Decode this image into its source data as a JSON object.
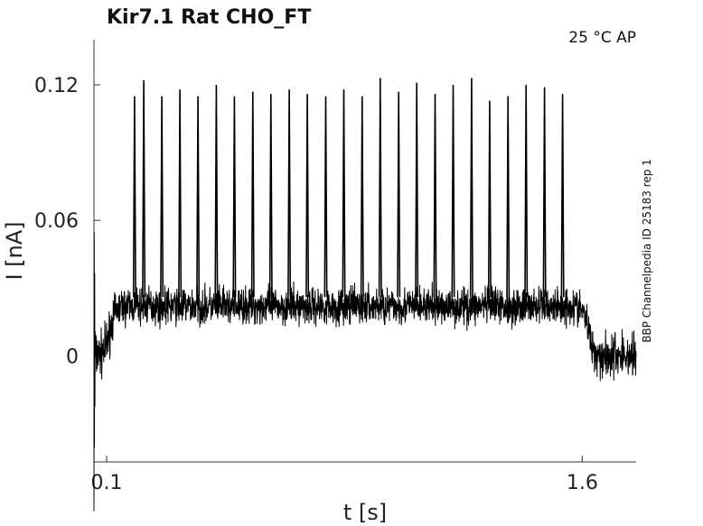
{
  "chart_data": {
    "type": "line",
    "title": "Kir7.1  Rat  CHO_FT",
    "condition": "25 °C  AP",
    "side_label": "BBP Channelpedia ID 25183 rep 1",
    "xlabel": "t [s]",
    "ylabel": "I [nA]",
    "xlim": [
      0.06,
      1.77
    ],
    "ylim": [
      -0.047,
      0.14
    ],
    "xticks": [
      {
        "value": 0.1,
        "label": "0.1"
      },
      {
        "value": 1.6,
        "label": "1.6"
      }
    ],
    "yticks": [
      {
        "value": 0,
        "label": "0"
      },
      {
        "value": 0.06,
        "label": "0.06"
      },
      {
        "value": 0.12,
        "label": "0.12"
      }
    ],
    "grid": false,
    "series": [
      {
        "color": "#000000",
        "baseline_before": 0.0,
        "plateau": 0.022,
        "baseline_after": 0.0,
        "step_on": 0.11,
        "step_off": 1.62,
        "noise_amplitude": 0.008,
        "spikes": [
          {
            "t": 0.188,
            "peak": 0.115
          },
          {
            "t": 0.217,
            "peak": 0.122
          },
          {
            "t": 0.274,
            "peak": 0.115
          },
          {
            "t": 0.331,
            "peak": 0.118
          },
          {
            "t": 0.388,
            "peak": 0.115
          },
          {
            "t": 0.446,
            "peak": 0.12
          },
          {
            "t": 0.503,
            "peak": 0.115
          },
          {
            "t": 0.561,
            "peak": 0.117
          },
          {
            "t": 0.618,
            "peak": 0.116
          },
          {
            "t": 0.676,
            "peak": 0.118
          },
          {
            "t": 0.733,
            "peak": 0.116
          },
          {
            "t": 0.791,
            "peak": 0.115
          },
          {
            "t": 0.848,
            "peak": 0.118
          },
          {
            "t": 0.906,
            "peak": 0.115
          },
          {
            "t": 0.963,
            "peak": 0.123
          },
          {
            "t": 1.021,
            "peak": 0.117
          },
          {
            "t": 1.078,
            "peak": 0.121
          },
          {
            "t": 1.136,
            "peak": 0.116
          },
          {
            "t": 1.193,
            "peak": 0.12
          },
          {
            "t": 1.251,
            "peak": 0.123
          },
          {
            "t": 1.308,
            "peak": 0.113
          },
          {
            "t": 1.366,
            "peak": 0.115
          },
          {
            "t": 1.423,
            "peak": 0.12
          },
          {
            "t": 1.481,
            "peak": 0.119
          },
          {
            "t": 1.538,
            "peak": 0.116
          }
        ]
      }
    ]
  }
}
